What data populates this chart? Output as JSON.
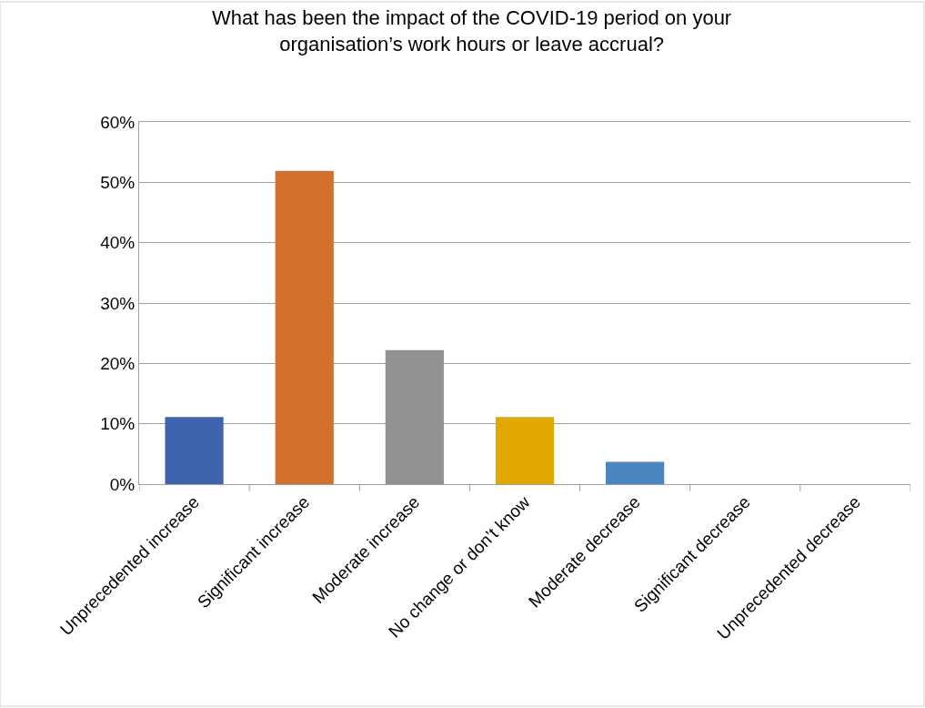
{
  "chart_data": {
    "type": "bar",
    "title": "What has been the impact of the COVID-19 period on your organisation’s work hours or leave accrual?",
    "categories": [
      "Unprecedented increase",
      "Significant increase",
      "Moderate increase",
      "No change or don’t know",
      "Moderate decrease",
      "Significant decrease",
      "Unprecedented decrease"
    ],
    "values": [
      11.1,
      51.9,
      22.2,
      11.1,
      3.7,
      0,
      0
    ],
    "colors": [
      "#3e64ad",
      "#d2702c",
      "#929292",
      "#e1a800",
      "#4a86c0",
      "#70ad47",
      "#264478"
    ],
    "ylim": [
      0,
      60
    ],
    "yticks": [
      {
        "value": 0,
        "label": "0%"
      },
      {
        "value": 10,
        "label": "10%"
      },
      {
        "value": 20,
        "label": "20%"
      },
      {
        "value": 30,
        "label": "30%"
      },
      {
        "value": 40,
        "label": "40%"
      },
      {
        "value": 50,
        "label": "50%"
      },
      {
        "value": 60,
        "label": "60%"
      }
    ],
    "grid": "y"
  }
}
